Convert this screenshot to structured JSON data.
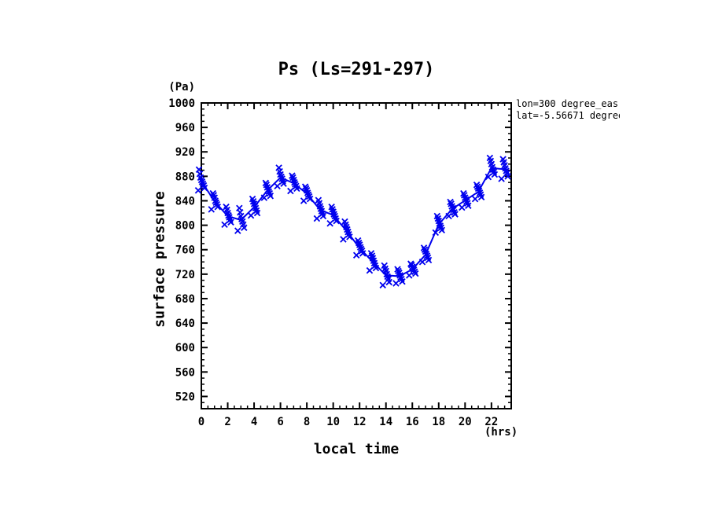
{
  "page": {
    "background": "#ffffff",
    "axis_color": "#000000"
  },
  "chart_data": {
    "type": "scatter",
    "title": "Ps (Ls=291-297)",
    "xlabel": "local time",
    "x_unit": "(hrs)",
    "ylabel": "surface pressure",
    "y_unit": "(Pa)",
    "annotation": {
      "line1": "lon=300 degree_eas",
      "line2": "lat=-5.56671 degree"
    },
    "series_color": "#0000ee",
    "legend": null,
    "grid": false,
    "xlim": [
      0,
      23.5
    ],
    "ylim": [
      500,
      1000
    ],
    "xticks": [
      0,
      2,
      4,
      6,
      8,
      10,
      12,
      14,
      16,
      18,
      20,
      22
    ],
    "x_minor_step": 0.5,
    "yticks": [
      520,
      560,
      600,
      640,
      680,
      720,
      760,
      800,
      840,
      880,
      920,
      960,
      1000
    ],
    "y_minor_step": 10,
    "hours": [
      0,
      1,
      2,
      3,
      4,
      5,
      6,
      7,
      8,
      9,
      10,
      11,
      12,
      13,
      14,
      15,
      16,
      17,
      18,
      19,
      20,
      21,
      22,
      23
    ],
    "points_by_hour": [
      [
        857,
        861,
        865,
        868,
        871,
        874,
        878,
        884,
        891
      ],
      [
        826,
        830,
        834,
        837,
        840,
        845,
        849,
        852
      ],
      [
        801,
        805,
        809,
        813,
        816,
        820,
        825,
        830
      ],
      [
        791,
        796,
        801,
        806,
        810,
        815,
        821,
        828
      ],
      [
        816,
        820,
        824,
        828,
        831,
        835,
        839,
        843
      ],
      [
        845,
        848,
        852,
        855,
        858,
        862,
        866,
        869
      ],
      [
        864,
        868,
        872,
        876,
        879,
        883,
        888,
        894
      ],
      [
        856,
        860,
        864,
        867,
        870,
        874,
        878,
        881
      ],
      [
        840,
        843,
        847,
        850,
        853,
        857,
        860,
        863
      ],
      [
        811,
        815,
        819,
        823,
        827,
        831,
        836,
        841
      ],
      [
        803,
        807,
        811,
        815,
        818,
        822,
        826,
        830
      ],
      [
        777,
        781,
        785,
        789,
        793,
        797,
        801,
        806
      ],
      [
        751,
        754,
        758,
        761,
        764,
        768,
        771,
        775
      ],
      [
        726,
        730,
        734,
        738,
        742,
        746,
        750,
        754
      ],
      [
        702,
        707,
        712,
        716,
        720,
        725,
        729,
        734
      ],
      [
        705,
        708,
        712,
        715,
        718,
        722,
        725,
        728
      ],
      [
        718,
        721,
        724,
        727,
        729,
        732,
        735,
        737
      ],
      [
        740,
        743,
        747,
        750,
        753,
        757,
        760,
        763
      ],
      [
        788,
        792,
        796,
        799,
        803,
        807,
        811,
        815
      ],
      [
        815,
        818,
        821,
        825,
        828,
        831,
        835,
        838
      ],
      [
        829,
        832,
        836,
        839,
        842,
        845,
        849,
        852
      ],
      [
        843,
        846,
        850,
        853,
        856,
        860,
        863,
        866
      ],
      [
        879,
        883,
        887,
        891,
        895,
        900,
        905,
        910
      ],
      [
        876,
        880,
        885,
        889,
        893,
        898,
        903,
        908
      ]
    ]
  }
}
